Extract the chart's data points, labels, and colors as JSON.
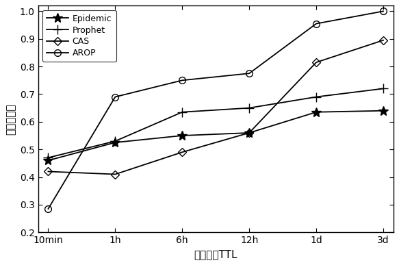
{
  "x_labels": [
    "10min",
    "1h",
    "6h",
    "12h",
    "1d",
    "3d"
  ],
  "x_positions": [
    0,
    1,
    2,
    3,
    4,
    5
  ],
  "series": [
    {
      "name": "Epidemic",
      "values": [
        0.46,
        0.525,
        0.55,
        0.56,
        0.635,
        0.64
      ],
      "marker": "*",
      "markersize": 10,
      "color": "#000000",
      "linestyle": "-",
      "fillstyle": "full"
    },
    {
      "name": "Prophet",
      "values": [
        0.47,
        0.53,
        0.635,
        0.65,
        0.69,
        0.72
      ],
      "marker": "+",
      "markersize": 10,
      "color": "#000000",
      "linestyle": "-",
      "fillstyle": "full"
    },
    {
      "name": "CAS",
      "values": [
        0.42,
        0.41,
        0.49,
        0.56,
        0.815,
        0.895
      ],
      "marker": "D",
      "markersize": 6,
      "color": "#000000",
      "linestyle": "-",
      "fillstyle": "none"
    },
    {
      "name": "AROP",
      "values": [
        0.285,
        0.69,
        0.75,
        0.775,
        0.955,
        1.0
      ],
      "marker": "o",
      "markersize": 7,
      "color": "#000000",
      "linestyle": "-",
      "fillstyle": "none"
    }
  ],
  "xlabel": "数据包的TTL",
  "ylabel": "投递成功率",
  "ylim": [
    0.2,
    1.02
  ],
  "yticks": [
    0.2,
    0.3,
    0.4,
    0.5,
    0.6,
    0.7,
    0.8,
    0.9,
    1.0
  ],
  "background_color": "#ffffff",
  "legend_loc": "upper left"
}
